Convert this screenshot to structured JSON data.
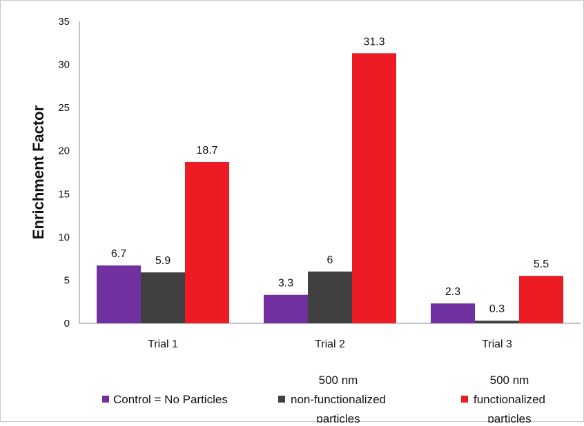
{
  "chart_data": {
    "type": "bar",
    "ylabel": "Enrichment Factor",
    "xlabel": "",
    "ylim": [
      0,
      35
    ],
    "yticks": [
      0,
      5,
      10,
      15,
      20,
      25,
      30,
      35
    ],
    "categories": [
      "Trial 1",
      "Trial 2",
      "Trial 3"
    ],
    "series": [
      {
        "name": "Control = No Particles",
        "legend_lines": [
          "Control = No Particles"
        ],
        "color": "#7030a0",
        "values": [
          6.7,
          3.3,
          2.3
        ],
        "labels": [
          "6.7",
          "3.3",
          "2.3"
        ]
      },
      {
        "name": "500 nm non-functionalized particles",
        "legend_lines": [
          "500 nm",
          "non-functionalized",
          "particles"
        ],
        "color": "#404040",
        "values": [
          5.9,
          6,
          0.3
        ],
        "labels": [
          "5.9",
          "6",
          "0.3"
        ]
      },
      {
        "name": "500 nm functionalized particles",
        "legend_lines": [
          "500 nm",
          "functionalized",
          "particles"
        ],
        "color": "#ed1c24",
        "values": [
          18.7,
          31.3,
          5.5
        ],
        "labels": [
          "18.7",
          "31.3",
          "5.5"
        ]
      }
    ],
    "grid": false,
    "legend_position": "bottom"
  }
}
